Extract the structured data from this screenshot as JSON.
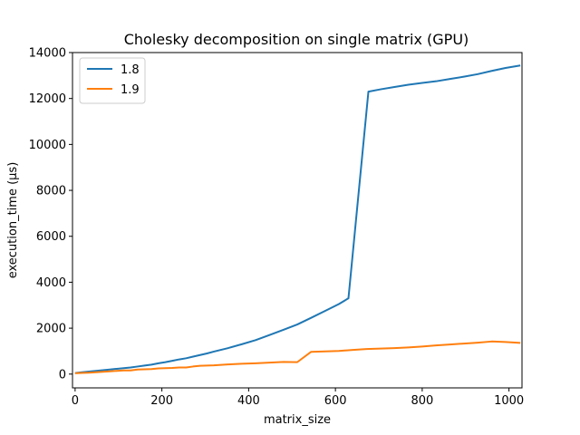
{
  "chart_data": {
    "type": "line",
    "title": "Cholesky decomposition on single matrix (GPU)",
    "xlabel": "matrix_size",
    "ylabel": "execution_time (μs)",
    "xlim": [
      -6,
      1030
    ],
    "ylim": [
      -600,
      14000
    ],
    "xticks": [
      0,
      200,
      400,
      600,
      800,
      1000
    ],
    "yticks": [
      0,
      2000,
      4000,
      6000,
      8000,
      10000,
      12000,
      14000
    ],
    "grid": false,
    "legend": "top-left",
    "series": [
      {
        "name": "1.8",
        "color": "#1f77b4",
        "x": [
          2,
          16,
          32,
          48,
          64,
          80,
          96,
          112,
          128,
          144,
          160,
          176,
          192,
          208,
          224,
          240,
          256,
          272,
          288,
          304,
          320,
          352,
          384,
          416,
          448,
          480,
          512,
          544,
          576,
          608,
          630,
          676,
          704,
          736,
          768,
          800,
          832,
          864,
          896,
          928,
          960,
          992,
          1024
        ],
        "y": [
          50,
          80,
          110,
          140,
          170,
          200,
          230,
          260,
          290,
          330,
          370,
          410,
          470,
          520,
          580,
          640,
          690,
          760,
          830,
          900,
          980,
          1130,
          1300,
          1480,
          1700,
          1930,
          2160,
          2450,
          2750,
          3050,
          3300,
          12300,
          12400,
          12500,
          12600,
          12680,
          12750,
          12850,
          12950,
          13060,
          13200,
          13330,
          13430
        ]
      },
      {
        "name": "1.9",
        "color": "#ff7f0e",
        "x": [
          2,
          16,
          32,
          48,
          64,
          80,
          96,
          112,
          128,
          144,
          160,
          176,
          192,
          208,
          224,
          240,
          256,
          272,
          288,
          320,
          352,
          384,
          416,
          448,
          480,
          512,
          544,
          576,
          608,
          640,
          672,
          704,
          736,
          768,
          800,
          832,
          864,
          896,
          928,
          960,
          992,
          1024
        ],
        "y": [
          40,
          50,
          60,
          80,
          100,
          120,
          140,
          160,
          160,
          200,
          210,
          220,
          250,
          260,
          270,
          290,
          290,
          330,
          360,
          380,
          420,
          450,
          470,
          500,
          530,
          520,
          970,
          990,
          1010,
          1050,
          1090,
          1110,
          1130,
          1160,
          1200,
          1250,
          1290,
          1330,
          1370,
          1420,
          1400,
          1360
        ]
      }
    ]
  }
}
